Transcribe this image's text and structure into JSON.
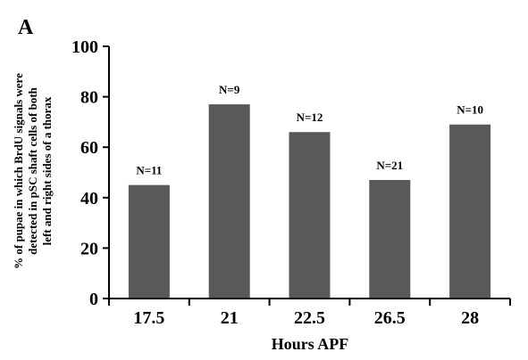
{
  "chart_data": {
    "type": "bar",
    "panel_label": "A",
    "ylabel_lines": [
      "% of pupae in which BrdU signals were",
      "detected  in pSC shaft cells of both",
      "left and right sides of a thorax"
    ],
    "xlabel": "Hours APF",
    "categories": [
      "17.5",
      "21",
      "22.5",
      "26.5",
      "28"
    ],
    "values": [
      45,
      77,
      66,
      47,
      69
    ],
    "data_labels": [
      "N=11",
      "N=9",
      "N=12",
      "N=21",
      "N=10"
    ],
    "ylim": [
      0,
      100
    ],
    "yticks": [
      0,
      20,
      40,
      60,
      80,
      100
    ],
    "bar_color": "#595959",
    "grid": false
  }
}
